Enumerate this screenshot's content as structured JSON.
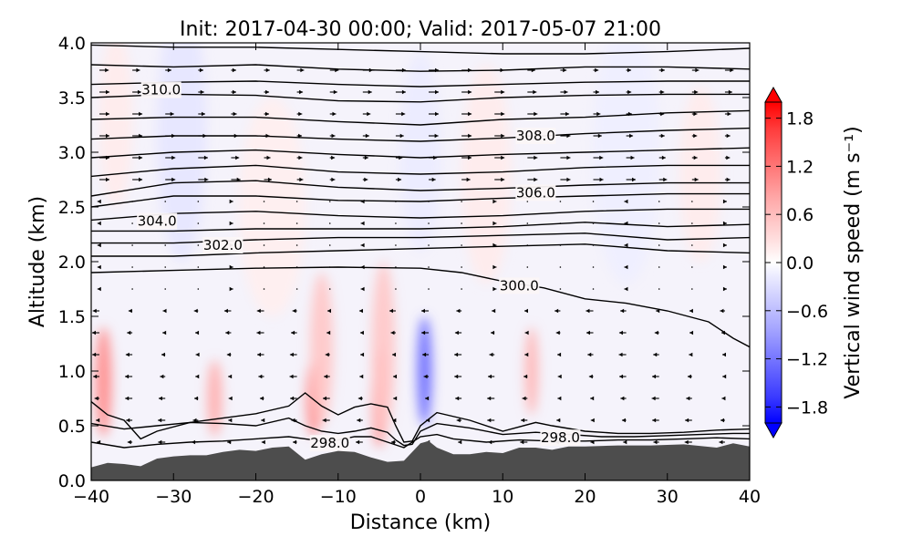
{
  "chart_data": {
    "type": "contour",
    "title": "Init: 2017-04-30 00:00; Valid: 2017-05-07 21:00",
    "xlabel": "Distance (km)",
    "ylabel": "Altitude (km)",
    "xlim": [
      -40,
      40
    ],
    "ylim": [
      0.0,
      4.0
    ],
    "x_ticks": [
      -40,
      -30,
      -20,
      -10,
      0,
      10,
      20,
      30,
      40
    ],
    "x_tick_labels": [
      "−40",
      "−30",
      "−20",
      "−10",
      "0",
      "10",
      "20",
      "30",
      "40"
    ],
    "y_ticks": [
      0.0,
      0.5,
      1.0,
      1.5,
      2.0,
      2.5,
      3.0,
      3.5,
      4.0
    ],
    "y_tick_labels": [
      "0.0",
      "0.5",
      "1.0",
      "1.5",
      "2.0",
      "2.5",
      "3.0",
      "3.5",
      "4.0"
    ],
    "colorbar": {
      "label": "Vertical wind speed (m s⁻¹)",
      "range": [
        -2.0,
        2.0
      ],
      "ticks": [
        1.8,
        1.2,
        0.6,
        0.0,
        -0.6,
        -1.2,
        -1.8
      ],
      "tick_labels": [
        "1.8",
        "1.2",
        "0.6",
        "0.0",
        "−0.6",
        "−1.2",
        "−1.8"
      ],
      "colormap": "bwr",
      "extend": "both"
    },
    "terrain": {
      "color": "#4d4d4d",
      "x": [
        -40,
        -38,
        -36,
        -34,
        -32,
        -30,
        -28,
        -26,
        -24,
        -22,
        -20,
        -18,
        -16,
        -14,
        -12,
        -10,
        -8,
        -6,
        -4,
        -2,
        0,
        1,
        2,
        4,
        6,
        8,
        10,
        12,
        14,
        16,
        18,
        20,
        24,
        28,
        32,
        36,
        38,
        40
      ],
      "y": [
        0.12,
        0.16,
        0.15,
        0.13,
        0.2,
        0.22,
        0.23,
        0.23,
        0.26,
        0.28,
        0.27,
        0.3,
        0.31,
        0.19,
        0.24,
        0.27,
        0.26,
        0.21,
        0.17,
        0.18,
        0.34,
        0.36,
        0.3,
        0.24,
        0.24,
        0.26,
        0.25,
        0.3,
        0.3,
        0.28,
        0.31,
        0.31,
        0.32,
        0.32,
        0.33,
        0.3,
        0.34,
        0.31
      ]
    },
    "w_features": [
      {
        "x": -38.5,
        "y": 0.9,
        "sx": 1.0,
        "sy": 0.5,
        "w": 0.7
      },
      {
        "x": -25.0,
        "y": 0.75,
        "sx": 0.9,
        "sy": 0.35,
        "w": 0.5
      },
      {
        "x": -13.0,
        "y": 0.75,
        "sx": 0.9,
        "sy": 0.35,
        "w": 0.7
      },
      {
        "x": -5.0,
        "y": 0.75,
        "sx": 0.9,
        "sy": 0.45,
        "w": 0.7
      },
      {
        "x": 0.5,
        "y": 1.0,
        "sx": 0.9,
        "sy": 0.5,
        "w": -0.9
      },
      {
        "x": 13.5,
        "y": 1.0,
        "sx": 0.8,
        "sy": 0.4,
        "w": 0.45
      },
      {
        "x": -12.0,
        "y": 1.2,
        "sx": 1.4,
        "sy": 0.7,
        "w": 0.35
      },
      {
        "x": -4.5,
        "y": 1.2,
        "sx": 1.4,
        "sy": 0.8,
        "w": 0.35
      },
      {
        "x": -29.0,
        "y": 3.2,
        "sx": 3.0,
        "sy": 1.2,
        "w": -0.15
      },
      {
        "x": 0.0,
        "y": 3.0,
        "sx": 2.5,
        "sy": 0.9,
        "w": -0.12
      },
      {
        "x": 8.0,
        "y": 2.8,
        "sx": 3.0,
        "sy": 1.0,
        "w": 0.12
      },
      {
        "x": -18.0,
        "y": 2.5,
        "sx": 4.0,
        "sy": 1.0,
        "w": 0.1
      },
      {
        "x": 25.0,
        "y": 3.0,
        "sx": 4.0,
        "sy": 1.2,
        "w": -0.1
      },
      {
        "x": 34.0,
        "y": 2.8,
        "sx": 2.5,
        "sy": 0.8,
        "w": 0.12
      },
      {
        "x": -37.0,
        "y": 3.3,
        "sx": 2.0,
        "sy": 0.8,
        "w": 0.12
      }
    ],
    "theta_contours": [
      {
        "x": [
          -40,
          -35,
          -30,
          -20,
          -10,
          0,
          10,
          20,
          30,
          40
        ],
        "y": [
          3.98,
          3.97,
          3.96,
          3.96,
          3.94,
          3.92,
          3.9,
          3.9,
          3.92,
          3.95
        ]
      },
      {
        "x": [
          -40,
          -30,
          -20,
          -10,
          0,
          10,
          20,
          30,
          40
        ],
        "y": [
          3.8,
          3.78,
          3.8,
          3.76,
          3.74,
          3.75,
          3.78,
          3.78,
          3.76
        ]
      },
      {
        "x": [
          -40,
          -30,
          -20,
          -10,
          0,
          10,
          20,
          30,
          40
        ],
        "y": [
          3.62,
          3.64,
          3.65,
          3.62,
          3.6,
          3.62,
          3.64,
          3.65,
          3.65
        ]
      },
      {
        "x": [
          -40,
          -30,
          -20,
          -10,
          0,
          10,
          20,
          30,
          40
        ],
        "y": [
          3.5,
          3.53,
          3.52,
          3.47,
          3.46,
          3.5,
          3.52,
          3.53,
          3.53
        ]
      },
      {
        "x": [
          -40,
          -30,
          -20,
          -10,
          0,
          10,
          20,
          30,
          40
        ],
        "y": [
          3.3,
          3.32,
          3.32,
          3.28,
          3.25,
          3.3,
          3.32,
          3.36,
          3.38
        ]
      },
      {
        "x": [
          -40,
          -30,
          -20,
          -10,
          0,
          10,
          20,
          30,
          40
        ],
        "y": [
          3.12,
          3.15,
          3.15,
          3.12,
          3.1,
          3.13,
          3.17,
          3.2,
          3.22
        ]
      },
      {
        "x": [
          -40,
          -30,
          -20,
          -10,
          0,
          10,
          20,
          30,
          40
        ],
        "y": [
          2.95,
          3.0,
          3.02,
          2.98,
          2.95,
          2.98,
          3.0,
          3.02,
          3.04
        ]
      },
      {
        "x": [
          -40,
          -30,
          -20,
          -10,
          0,
          10,
          20,
          30,
          40
        ],
        "y": [
          2.78,
          2.85,
          2.88,
          2.82,
          2.8,
          2.82,
          2.86,
          2.88,
          2.88
        ]
      },
      {
        "x": [
          -40,
          -30,
          -20,
          -10,
          0,
          10,
          20,
          30,
          40
        ],
        "y": [
          2.6,
          2.72,
          2.74,
          2.68,
          2.65,
          2.67,
          2.7,
          2.72,
          2.72
        ]
      },
      {
        "x": [
          -40,
          -30,
          -20,
          -10,
          0,
          10,
          20,
          30,
          40
        ],
        "y": [
          2.5,
          2.6,
          2.6,
          2.56,
          2.55,
          2.58,
          2.6,
          2.62,
          2.62
        ]
      },
      {
        "x": [
          -40,
          -30,
          -20,
          -10,
          0,
          10,
          20,
          30,
          40
        ],
        "y": [
          2.38,
          2.44,
          2.46,
          2.42,
          2.4,
          2.42,
          2.46,
          2.48,
          2.48
        ]
      },
      {
        "x": [
          -40,
          -30,
          -20,
          -10,
          0,
          10,
          20,
          30,
          40
        ],
        "y": [
          2.28,
          2.28,
          2.3,
          2.3,
          2.3,
          2.32,
          2.36,
          2.32,
          2.34
        ]
      },
      {
        "x": [
          -40,
          -30,
          -20,
          -10,
          0,
          10,
          20,
          30,
          40
        ],
        "y": [
          2.17,
          2.17,
          2.2,
          2.22,
          2.22,
          2.24,
          2.26,
          2.2,
          2.22
        ]
      },
      {
        "x": [
          -40,
          -30,
          -20,
          -10,
          0,
          10,
          20,
          30,
          40
        ],
        "y": [
          2.05,
          2.05,
          2.08,
          2.1,
          2.12,
          2.14,
          2.16,
          2.1,
          2.08
        ]
      },
      {
        "x": [
          -40,
          -30,
          -20,
          -10,
          0,
          5,
          10,
          15,
          20,
          25,
          30,
          35,
          38,
          40
        ],
        "y": [
          1.9,
          1.92,
          1.94,
          1.95,
          1.94,
          1.9,
          1.82,
          1.76,
          1.66,
          1.62,
          1.55,
          1.45,
          1.3,
          1.22
        ]
      },
      {
        "x": [
          -40,
          -38,
          -36,
          -34,
          -32,
          -28,
          -24,
          -20,
          -16,
          -14,
          -12,
          -10,
          -8,
          -6,
          -4,
          -3,
          -2,
          -1,
          0,
          2,
          6,
          10,
          14,
          16,
          20,
          24,
          28,
          32,
          36,
          40
        ],
        "y": [
          0.72,
          0.6,
          0.55,
          0.38,
          0.45,
          0.53,
          0.57,
          0.61,
          0.68,
          0.8,
          0.68,
          0.6,
          0.67,
          0.7,
          0.67,
          0.5,
          0.35,
          0.36,
          0.5,
          0.62,
          0.55,
          0.45,
          0.53,
          0.5,
          0.45,
          0.43,
          0.43,
          0.44,
          0.46,
          0.47
        ]
      },
      {
        "x": [
          -40,
          -36,
          -32,
          -28,
          -24,
          -20,
          -16,
          -14,
          -12,
          -10,
          -8,
          -6,
          -4,
          -3,
          -2,
          -1,
          0,
          2,
          6,
          10,
          14,
          18,
          22,
          26,
          30,
          34,
          38,
          40
        ],
        "y": [
          0.52,
          0.47,
          0.5,
          0.53,
          0.52,
          0.5,
          0.57,
          0.5,
          0.45,
          0.43,
          0.45,
          0.48,
          0.44,
          0.37,
          0.32,
          0.33,
          0.45,
          0.52,
          0.48,
          0.42,
          0.44,
          0.42,
          0.4,
          0.4,
          0.41,
          0.42,
          0.43,
          0.43
        ]
      },
      {
        "x": [
          -40,
          -36,
          -32,
          -28,
          -24,
          -20,
          -16,
          -14,
          -12,
          -10,
          -8,
          -6,
          -4,
          -2,
          0,
          2,
          4,
          8,
          12,
          16,
          20,
          24,
          28,
          32,
          36,
          40
        ],
        "y": [
          0.35,
          0.3,
          0.33,
          0.35,
          0.36,
          0.38,
          0.4,
          0.38,
          0.36,
          0.37,
          0.4,
          0.4,
          0.35,
          0.3,
          0.4,
          0.42,
          0.38,
          0.35,
          0.37,
          0.36,
          0.36,
          0.37,
          0.37,
          0.38,
          0.39,
          0.38
        ]
      }
    ],
    "contour_labels": [
      {
        "text": "310.0",
        "x": -31.5,
        "y": 3.57
      },
      {
        "text": "308.0",
        "x": 14.0,
        "y": 3.15
      },
      {
        "text": "306.0",
        "x": 14.0,
        "y": 2.63
      },
      {
        "text": "304.0",
        "x": -32.0,
        "y": 2.37
      },
      {
        "text": "302.0",
        "x": -24.0,
        "y": 2.15
      },
      {
        "text": "300.0",
        "x": 12.0,
        "y": 1.78
      },
      {
        "text": "298.0",
        "x": -11.0,
        "y": 0.34
      },
      {
        "text": "298.0",
        "x": 17.0,
        "y": 0.39
      }
    ]
  }
}
